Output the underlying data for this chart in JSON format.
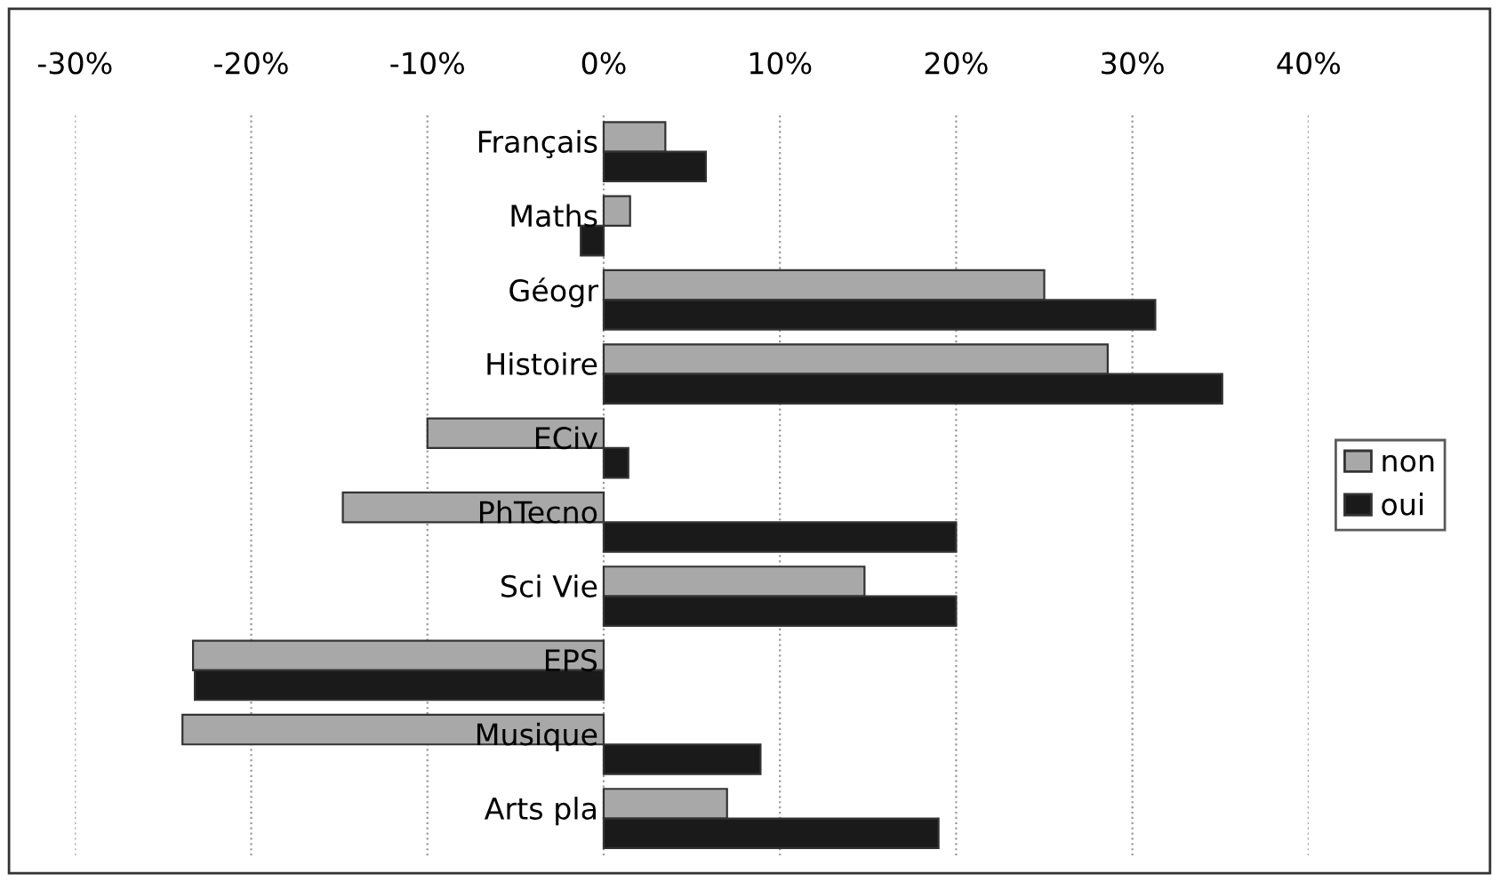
{
  "chart_data": {
    "type": "bar",
    "orientation": "horizontal",
    "categories": [
      "Français",
      "Maths",
      "Géogr",
      "Histoire",
      "ECiv",
      "PhTecno",
      "Sci Vie",
      "EPS",
      "Musique",
      "Arts pla"
    ],
    "series": [
      {
        "name": "non",
        "color": "#a8a8a8",
        "values": [
          3.5,
          1.5,
          25,
          28.6,
          -10,
          -14.8,
          14.8,
          -23.3,
          -23.9,
          7
        ]
      },
      {
        "name": "oui",
        "color": "#1a1a1a",
        "values": [
          5.8,
          -1.3,
          31.3,
          35.1,
          1.4,
          20,
          20,
          -23.2,
          8.9,
          19
        ]
      }
    ],
    "xlim": [
      -30,
      40
    ],
    "xticks": [
      {
        "value": -30,
        "label": "-30%"
      },
      {
        "value": -20,
        "label": "-20%"
      },
      {
        "value": -10,
        "label": "-10%"
      },
      {
        "value": 0,
        "label": "0%"
      },
      {
        "value": 10,
        "label": "10%"
      },
      {
        "value": 20,
        "label": "20%"
      },
      {
        "value": 30,
        "label": "30%"
      },
      {
        "value": 40,
        "label": "40%"
      }
    ],
    "grid": "x",
    "legend": "right"
  }
}
